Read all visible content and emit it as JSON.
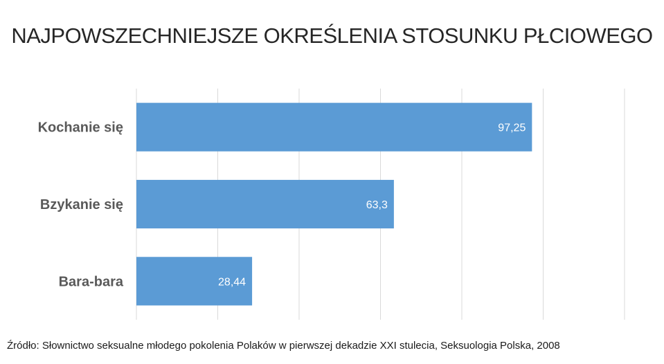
{
  "chart_data": {
    "type": "bar",
    "orientation": "horizontal",
    "title": "NAJPOWSZECHNIEJSZE OKREŚLENIA STOSUNKU PŁCIOWEGO",
    "categories": [
      "Kochanie się",
      "Bzykanie się",
      "Bara-bara"
    ],
    "values": [
      97.25,
      63.3,
      28.44
    ],
    "value_labels": [
      "97,25",
      "63,3",
      "28,44"
    ],
    "xlim": [
      0,
      120
    ],
    "grid": true,
    "bar_color": "#5B9BD5",
    "gridline_color": "#D9D9D9",
    "label_color": "#595959",
    "value_label_color": "#ffffff",
    "xlabel": "",
    "ylabel": ""
  },
  "source_note": "Źródło: Słownictwo seksualne młodego pokolenia Polaków w pierwszej dekadzie XXI stulecia, Seksuologia Polska, 2008"
}
